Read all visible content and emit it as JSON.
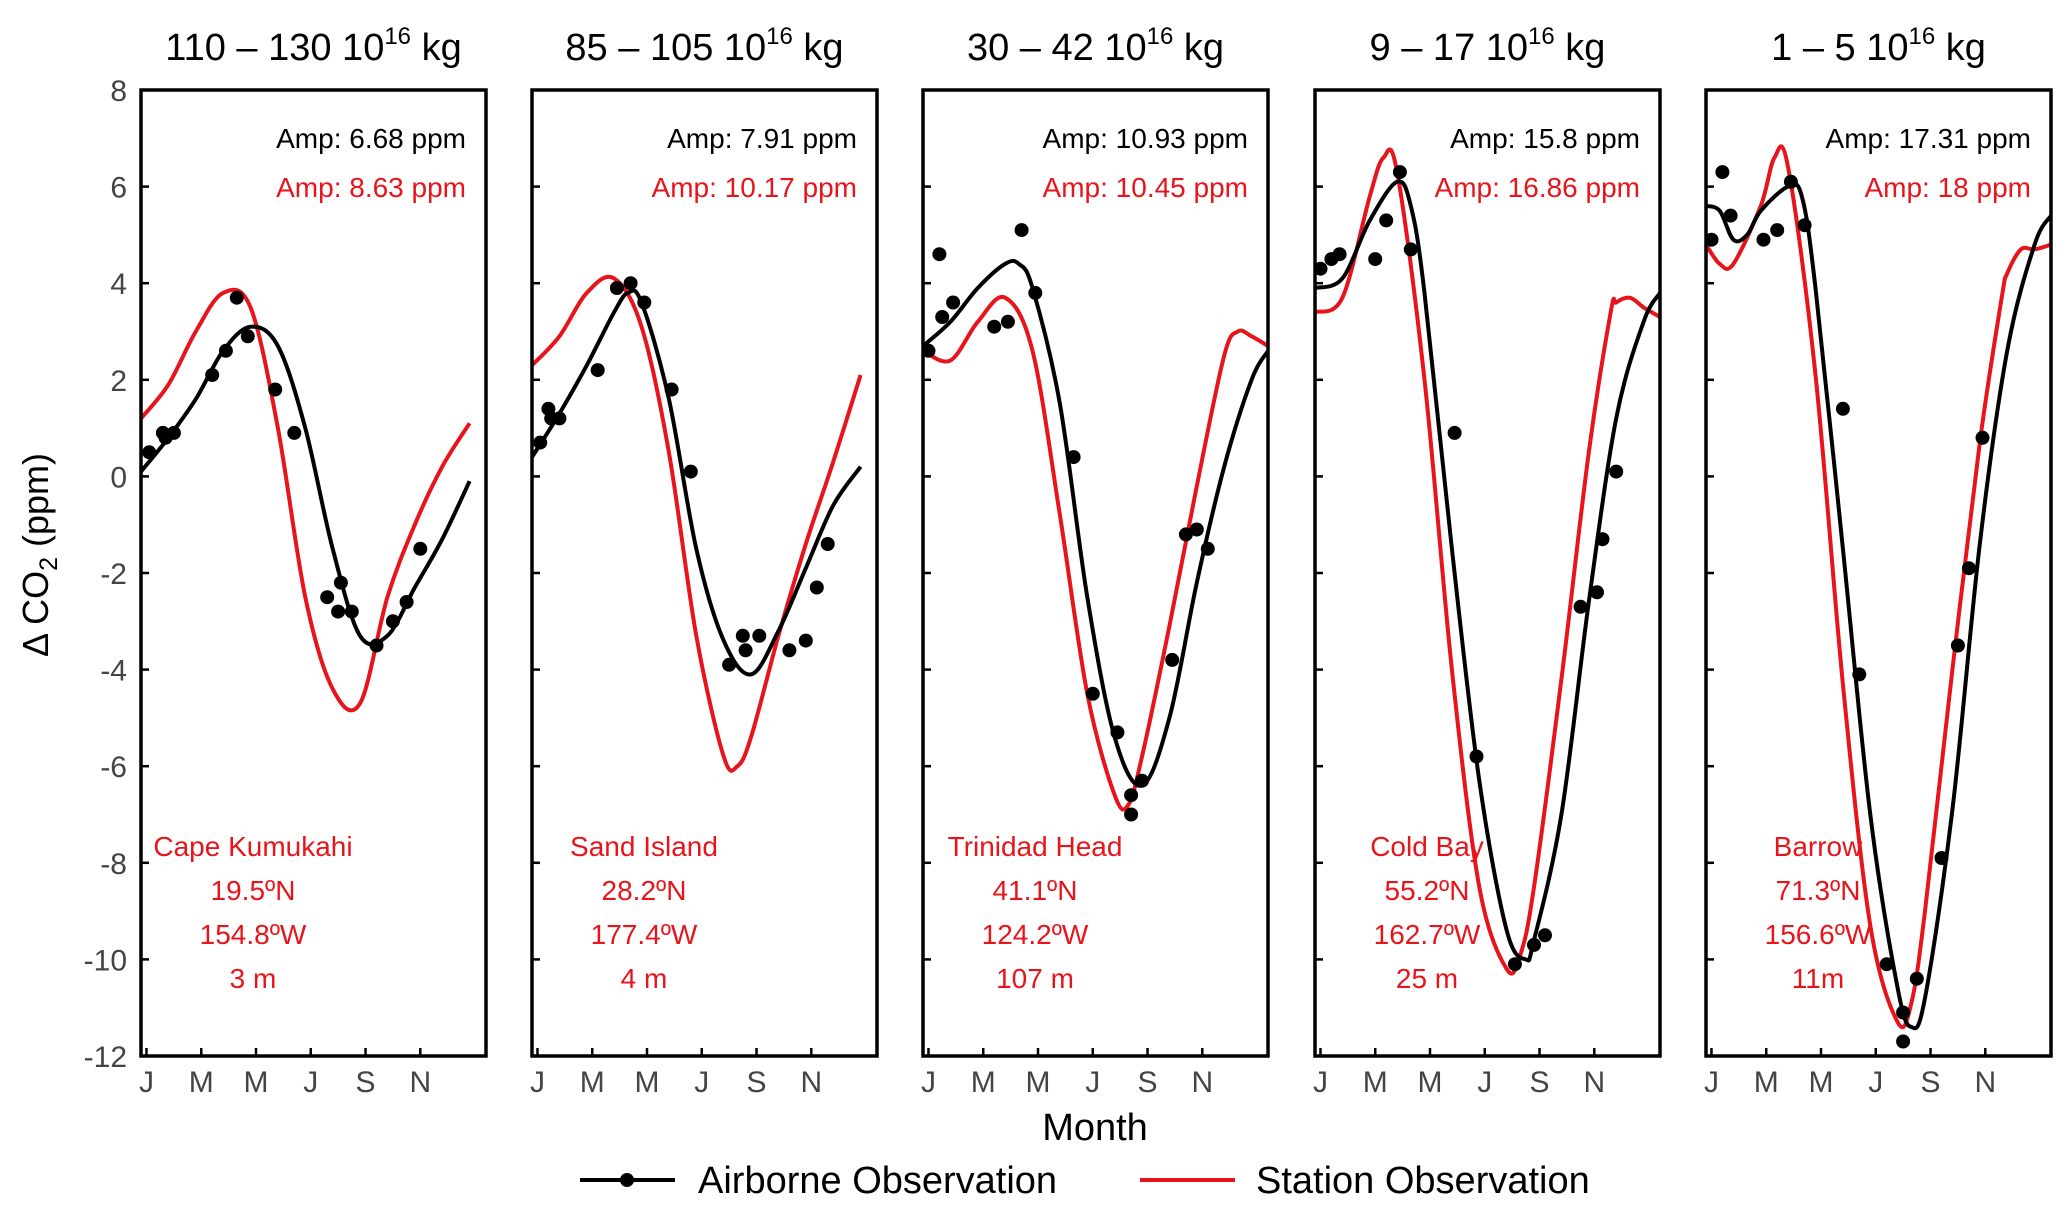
{
  "chart_data": {
    "type": "line",
    "figure": {
      "ylabel_prefix": "Δ CO",
      "ylabel_sub": "2",
      "ylabel_suffix": " (ppm)",
      "xlabel": "Month",
      "yticks": [
        8,
        6,
        4,
        2,
        0,
        -2,
        -4,
        -6,
        -8,
        -10,
        -12
      ],
      "ylim": [
        -12,
        8
      ],
      "xlim": [
        0,
        12.6
      ],
      "xticks": [
        {
          "label": "J",
          "month": 0.2
        },
        {
          "label": "M",
          "month": 2.2
        },
        {
          "label": "M",
          "month": 4.2
        },
        {
          "label": "J",
          "month": 6.2
        },
        {
          "label": "S",
          "month": 8.2
        },
        {
          "label": "N",
          "month": 10.2
        }
      ],
      "legend": {
        "placement": "bottom-center",
        "airborne_label": "Airborne Observation",
        "station_label": "Station Observation",
        "airborne_color": "#000000",
        "station_color": "#e8141b"
      }
    },
    "panels": [
      {
        "title_range": "110 – 130 10",
        "title_exp": "16",
        "title_unit": " kg",
        "amp_airborne": "Amp: 6.68 ppm",
        "amp_station": "Amp: 8.63 ppm",
        "site": "Cape Kumukahi",
        "lat": "19.5ºN",
        "lon": "154.8ºW",
        "alt": "3 m",
        "airborne_curve": [
          [
            0,
            0.1
          ],
          [
            1,
            0.8
          ],
          [
            2,
            1.6
          ],
          [
            3,
            2.6
          ],
          [
            4,
            3.1
          ],
          [
            5,
            2.7
          ],
          [
            6,
            1.0
          ],
          [
            7,
            -1.5
          ],
          [
            8,
            -3.3
          ],
          [
            9,
            -3.3
          ],
          [
            10,
            -2.3
          ],
          [
            11,
            -1.3
          ],
          [
            12,
            -0.1
          ]
        ],
        "station_curve": [
          [
            0,
            1.2
          ],
          [
            1,
            1.9
          ],
          [
            2,
            3.0
          ],
          [
            3,
            3.8
          ],
          [
            4,
            3.5
          ],
          [
            5,
            1.0
          ],
          [
            6,
            -2.5
          ],
          [
            7,
            -4.4
          ],
          [
            8,
            -4.7
          ],
          [
            9,
            -2.5
          ],
          [
            10,
            -1.0
          ],
          [
            11,
            0.2
          ],
          [
            12,
            1.1
          ]
        ],
        "airborne_points": [
          [
            0.3,
            0.5
          ],
          [
            0.8,
            0.9
          ],
          [
            0.9,
            0.8
          ],
          [
            1.2,
            0.9
          ],
          [
            2.6,
            2.1
          ],
          [
            3.1,
            2.6
          ],
          [
            3.5,
            3.7
          ],
          [
            3.9,
            2.9
          ],
          [
            4.9,
            1.8
          ],
          [
            5.6,
            0.9
          ],
          [
            6.8,
            -2.5
          ],
          [
            7.2,
            -2.8
          ],
          [
            7.3,
            -2.2
          ],
          [
            7.7,
            -2.8
          ],
          [
            8.6,
            -3.5
          ],
          [
            9.2,
            -3.0
          ],
          [
            9.7,
            -2.6
          ],
          [
            10.2,
            -1.5
          ]
        ]
      },
      {
        "title_range": "85 – 105 10",
        "title_exp": "16",
        "title_unit": " kg",
        "amp_airborne": "Amp: 7.91 ppm",
        "amp_station": "Amp: 10.17 ppm",
        "site": "Sand Island",
        "lat": "28.2ºN",
        "lon": "177.4ºW",
        "alt": "4 m",
        "airborne_curve": [
          [
            0,
            0.4
          ],
          [
            1,
            1.3
          ],
          [
            2,
            2.3
          ],
          [
            3,
            3.4
          ],
          [
            3.5,
            3.8
          ],
          [
            4,
            3.6
          ],
          [
            5,
            1.6
          ],
          [
            6,
            -1.5
          ],
          [
            7,
            -3.4
          ],
          [
            8,
            -4.1
          ],
          [
            9,
            -3.2
          ],
          [
            10,
            -1.9
          ],
          [
            11,
            -0.6
          ],
          [
            12,
            0.2
          ]
        ],
        "station_curve": [
          [
            0,
            2.3
          ],
          [
            1,
            2.9
          ],
          [
            2,
            3.8
          ],
          [
            3,
            4.1
          ],
          [
            4,
            3.1
          ],
          [
            5,
            0.5
          ],
          [
            6,
            -3.3
          ],
          [
            7,
            -5.8
          ],
          [
            7.5,
            -6.0
          ],
          [
            8,
            -5.4
          ],
          [
            9,
            -3.3
          ],
          [
            10,
            -1.4
          ],
          [
            11,
            0.3
          ],
          [
            12,
            2.1
          ]
        ],
        "airborne_points": [
          [
            0.3,
            0.7
          ],
          [
            0.6,
            1.4
          ],
          [
            0.7,
            1.2
          ],
          [
            1.0,
            1.2
          ],
          [
            2.4,
            2.2
          ],
          [
            3.1,
            3.9
          ],
          [
            3.6,
            4.0
          ],
          [
            4.1,
            3.6
          ],
          [
            5.1,
            1.8
          ],
          [
            5.8,
            0.1
          ],
          [
            7.2,
            -3.9
          ],
          [
            7.7,
            -3.3
          ],
          [
            7.8,
            -3.6
          ],
          [
            8.3,
            -3.3
          ],
          [
            9.4,
            -3.6
          ],
          [
            10.0,
            -3.4
          ],
          [
            10.4,
            -2.3
          ],
          [
            10.8,
            -1.4
          ]
        ]
      },
      {
        "title_range": "30 – 42 10",
        "title_exp": "16",
        "title_unit": " kg",
        "amp_airborne": "Amp: 10.93 ppm",
        "amp_station": "Amp: 10.45 ppm",
        "site": "Trinidad Head",
        "lat": "41.1ºN",
        "lon": "124.2ºW",
        "alt": "107 m",
        "airborne_curve": [
          [
            0,
            2.7
          ],
          [
            1,
            3.2
          ],
          [
            2,
            3.9
          ],
          [
            3,
            4.4
          ],
          [
            3.5,
            4.4
          ],
          [
            4,
            3.9
          ],
          [
            5,
            1.5
          ],
          [
            6,
            -2.5
          ],
          [
            7,
            -5.4
          ],
          [
            8,
            -6.4
          ],
          [
            9,
            -5.0
          ],
          [
            10,
            -2.2
          ],
          [
            11,
            0.2
          ],
          [
            12,
            2.0
          ],
          [
            12.6,
            2.6
          ]
        ],
        "station_curve": [
          [
            0,
            2.6
          ],
          [
            1,
            2.4
          ],
          [
            2,
            3.2
          ],
          [
            3,
            3.7
          ],
          [
            4,
            2.6
          ],
          [
            5,
            -0.8
          ],
          [
            6,
            -4.5
          ],
          [
            7,
            -6.6
          ],
          [
            7.5,
            -6.8
          ],
          [
            8,
            -5.8
          ],
          [
            9,
            -3.1
          ],
          [
            10,
            -0.2
          ],
          [
            11,
            2.5
          ],
          [
            11.5,
            3.0
          ],
          [
            12,
            2.9
          ],
          [
            12.6,
            2.7
          ]
        ],
        "airborne_points": [
          [
            0.2,
            2.6
          ],
          [
            0.6,
            4.6
          ],
          [
            0.7,
            3.3
          ],
          [
            1.1,
            3.6
          ],
          [
            2.6,
            3.1
          ],
          [
            3.1,
            3.2
          ],
          [
            3.6,
            5.1
          ],
          [
            4.1,
            3.8
          ],
          [
            5.5,
            0.4
          ],
          [
            6.2,
            -4.5
          ],
          [
            7.1,
            -5.3
          ],
          [
            7.6,
            -6.6
          ],
          [
            7.6,
            -7.0
          ],
          [
            8.0,
            -6.3
          ],
          [
            9.1,
            -3.8
          ],
          [
            9.6,
            -1.2
          ],
          [
            10.0,
            -1.1
          ],
          [
            10.4,
            -1.5
          ]
        ]
      },
      {
        "title_range": "9 – 17 10",
        "title_exp": "16",
        "title_unit": " kg",
        "amp_airborne": "Amp: 15.8 ppm",
        "amp_station": "Amp: 16.86 ppm",
        "site": "Cold Bay",
        "lat": "55.2ºN",
        "lon": "162.7ºW",
        "alt": "25 m",
        "airborne_curve": [
          [
            0,
            3.9
          ],
          [
            1,
            4.1
          ],
          [
            2,
            5.3
          ],
          [
            3,
            6.1
          ],
          [
            3.5,
            5.6
          ],
          [
            4,
            3.8
          ],
          [
            5,
            -1.5
          ],
          [
            6,
            -6.3
          ],
          [
            7,
            -9.4
          ],
          [
            7.7,
            -10.0
          ],
          [
            8,
            -9.6
          ],
          [
            9,
            -7.0
          ],
          [
            10,
            -2.6
          ],
          [
            11,
            1.2
          ],
          [
            12,
            3.2
          ],
          [
            12.6,
            3.8
          ]
        ],
        "station_curve": [
          [
            0,
            3.4
          ],
          [
            1,
            3.7
          ],
          [
            2,
            5.8
          ],
          [
            2.5,
            6.6
          ],
          [
            3,
            6.3
          ],
          [
            4,
            2.0
          ],
          [
            5,
            -4.0
          ],
          [
            6,
            -8.5
          ],
          [
            7,
            -10.2
          ],
          [
            7.5,
            -9.9
          ],
          [
            8,
            -8.5
          ],
          [
            9,
            -4.2
          ],
          [
            10,
            0.5
          ],
          [
            10.8,
            3.4
          ],
          [
            11,
            3.6
          ],
          [
            11.5,
            3.7
          ],
          [
            12,
            3.5
          ],
          [
            12.6,
            3.3
          ]
        ],
        "airborne_points": [
          [
            0.2,
            4.3
          ],
          [
            0.6,
            4.5
          ],
          [
            0.9,
            4.6
          ],
          [
            2.2,
            4.5
          ],
          [
            2.6,
            5.3
          ],
          [
            3.1,
            6.3
          ],
          [
            3.5,
            4.7
          ],
          [
            5.1,
            0.9
          ],
          [
            5.9,
            -5.8
          ],
          [
            7.3,
            -10.1
          ],
          [
            8.0,
            -9.7
          ],
          [
            8.4,
            -9.5
          ],
          [
            9.7,
            -2.7
          ],
          [
            10.3,
            -2.4
          ],
          [
            10.5,
            -1.3
          ],
          [
            11.0,
            0.1
          ]
        ]
      },
      {
        "title_range": "1 – 5 10",
        "title_exp": "16",
        "title_unit": " kg",
        "amp_airborne": "Amp: 17.31 ppm",
        "amp_station": "Amp: 18 ppm",
        "site": "Barrow",
        "lat": "71.3ºN",
        "lon": "156.6ºW",
        "alt": "11m",
        "airborne_curve": [
          [
            0,
            5.6
          ],
          [
            0.5,
            5.5
          ],
          [
            1,
            4.9
          ],
          [
            1.5,
            5.0
          ],
          [
            2,
            5.5
          ],
          [
            3,
            6.0
          ],
          [
            3.5,
            5.8
          ],
          [
            4,
            3.9
          ],
          [
            5,
            -1.5
          ],
          [
            6,
            -7.0
          ],
          [
            7,
            -10.6
          ],
          [
            7.5,
            -11.4
          ],
          [
            8,
            -10.8
          ],
          [
            9,
            -6.9
          ],
          [
            10,
            -1.4
          ],
          [
            11,
            2.6
          ],
          [
            12,
            4.8
          ],
          [
            12.6,
            5.4
          ]
        ],
        "station_curve": [
          [
            0,
            4.8
          ],
          [
            0.5,
            4.4
          ],
          [
            1,
            4.4
          ],
          [
            2,
            5.6
          ],
          [
            2.5,
            6.6
          ],
          [
            3,
            6.4
          ],
          [
            4,
            2.1
          ],
          [
            5,
            -4.3
          ],
          [
            6,
            -9.3
          ],
          [
            7,
            -11.3
          ],
          [
            7.5,
            -10.9
          ],
          [
            8,
            -9.0
          ],
          [
            9,
            -4.0
          ],
          [
            10,
            0.7
          ],
          [
            10.8,
            3.7
          ],
          [
            11,
            4.2
          ],
          [
            11.5,
            4.7
          ],
          [
            12,
            4.7
          ],
          [
            12.6,
            4.8
          ]
        ],
        "airborne_points": [
          [
            0.2,
            4.9
          ],
          [
            0.6,
            6.3
          ],
          [
            0.9,
            5.4
          ],
          [
            2.1,
            4.9
          ],
          [
            2.6,
            5.1
          ],
          [
            3.1,
            6.1
          ],
          [
            3.6,
            5.2
          ],
          [
            5.0,
            1.4
          ],
          [
            5.6,
            -4.1
          ],
          [
            6.6,
            -10.1
          ],
          [
            7.2,
            -11.1
          ],
          [
            7.2,
            -11.7
          ],
          [
            7.7,
            -10.4
          ],
          [
            8.6,
            -7.9
          ],
          [
            9.2,
            -3.5
          ],
          [
            9.6,
            -1.9
          ],
          [
            10.1,
            0.8
          ]
        ]
      }
    ]
  }
}
